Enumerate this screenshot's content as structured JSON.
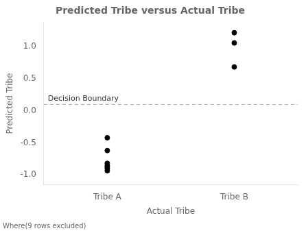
{
  "chart_data": {
    "type": "scatter",
    "title": "Predicted Tribe versus Actual Tribe",
    "x_label": "Actual Tribe",
    "y_label": "Predicted Tribe",
    "footnote": "Where(9 rows excluded)",
    "categories": [
      "Tribe A",
      "Tribe B"
    ],
    "values": [
      [
        -0.42,
        -0.62,
        -0.82,
        -0.855,
        -0.875,
        -0.9,
        -0.935
      ],
      [
        0.685,
        1.06,
        1.22
      ]
    ],
    "color": "#000000",
    "ylim": [
      -1.15,
      1.38
    ],
    "yticks": [
      {
        "value": -1.0,
        "label": "-1.0"
      },
      {
        "value": -0.5,
        "label": "-0.5"
      },
      {
        "value": 0.0,
        "label": "0.0"
      },
      {
        "value": 0.5,
        "label": "0.5"
      },
      {
        "value": 1.0,
        "label": "1.0"
      }
    ],
    "grid": false,
    "annotations": [
      {
        "y": 0.1,
        "label": "Decision Boundary",
        "color": "#aaaaaa",
        "line_style": "dashed"
      }
    ]
  }
}
